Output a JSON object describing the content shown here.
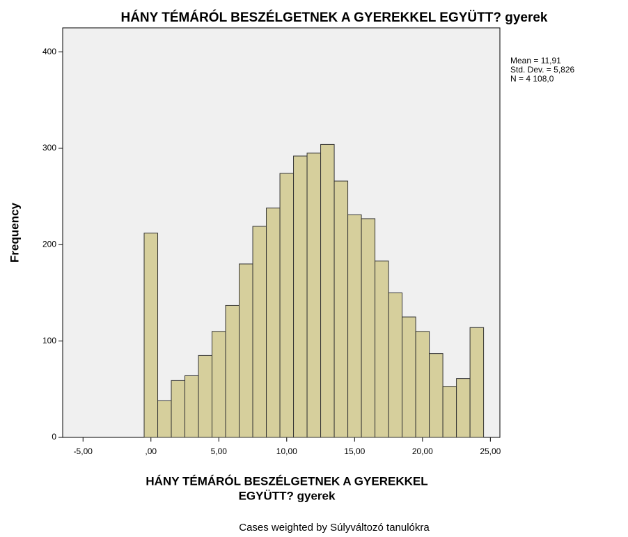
{
  "chart_data": {
    "type": "histogram",
    "title": "HÁNY TÉMÁRÓL BESZÉLGETNEK A GYEREKKEL EGYÜTT? gyerek",
    "xlabel": [
      "HÁNY TÉMÁRÓL BESZÉLGETNEK A GYEREKKEL",
      "EGYÜTT? gyerek"
    ],
    "ylabel": "Frequency",
    "bins": [
      -0.5,
      0.5,
      1.5,
      2.5,
      3.5,
      4.5,
      5.5,
      6.5,
      7.5,
      8.5,
      9.5,
      10.5,
      11.5,
      12.5,
      13.5,
      14.5,
      15.5,
      16.5,
      17.5,
      18.5,
      19.5,
      20.5,
      21.5,
      22.5,
      23.5,
      24.5
    ],
    "counts": [
      212,
      38,
      59,
      64,
      85,
      110,
      137,
      180,
      219,
      238,
      274,
      292,
      295,
      304,
      266,
      231,
      227,
      183,
      150,
      125,
      110,
      87,
      53,
      61,
      114
    ],
    "color": "#d6cf9c",
    "xlim": [
      -6.5,
      25.7
    ],
    "ylim": [
      0,
      425
    ],
    "xticks": [
      {
        "value": -5,
        "label": "-5,00"
      },
      {
        "value": 0,
        "label": ",00"
      },
      {
        "value": 5,
        "label": "5,00"
      },
      {
        "value": 10,
        "label": "10,00"
      },
      {
        "value": 15,
        "label": "15,00"
      },
      {
        "value": 20,
        "label": "20,00"
      },
      {
        "value": 25,
        "label": "25,00"
      }
    ],
    "yticks": [
      0,
      100,
      200,
      300,
      400
    ],
    "annotations": [
      "Mean = 11,91",
      "Std. Dev. = 5,826",
      "N = 4 108,0"
    ],
    "footnote": "Cases weighted by Súlyváltozó tanulókra"
  }
}
